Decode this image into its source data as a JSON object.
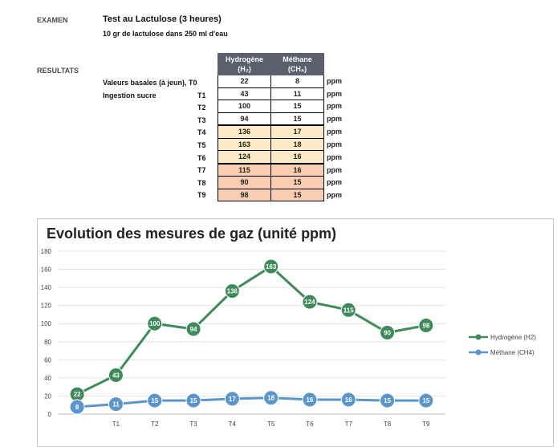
{
  "header": {
    "exam_label": "EXAMEN",
    "exam_title": "Test au Lactulose (3 heures)",
    "exam_subtitle": "10 gr de lactulose dans 250 ml d'eau",
    "results_label": "RESULTATS"
  },
  "table": {
    "col1_header_line1": "Hydrogène",
    "col1_header_line2": "(H₂)",
    "col2_header_line1": "Méthane",
    "col2_header_line2": "(CH₄)",
    "label_basal": "Valeurs basales (à jeun), T0",
    "label_ingestion": "Ingestion sucre",
    "unit": "ppm",
    "rows": [
      {
        "time": "",
        "h2": "22",
        "ch4": "8"
      },
      {
        "time": "T1",
        "h2": "43",
        "ch4": "11"
      },
      {
        "time": "T2",
        "h2": "100",
        "ch4": "15"
      },
      {
        "time": "T3",
        "h2": "94",
        "ch4": "15"
      },
      {
        "time": "T4",
        "h2": "136",
        "ch4": "17"
      },
      {
        "time": "T5",
        "h2": "163",
        "ch4": "18"
      },
      {
        "time": "T6",
        "h2": "124",
        "ch4": "16"
      },
      {
        "time": "T7",
        "h2": "115",
        "ch4": "16"
      },
      {
        "time": "T8",
        "h2": "90",
        "ch4": "15"
      },
      {
        "time": "T9",
        "h2": "98",
        "ch4": "15"
      }
    ],
    "row_colors": [
      "#ffffff",
      "#ffffff",
      "#ffffff",
      "#ffffff",
      "#fde9c4",
      "#fde9c4",
      "#fde9c4",
      "#f8cdb0",
      "#f8cdb0",
      "#f8cdb0"
    ]
  },
  "chart_data": {
    "type": "line",
    "title": "Evolution des mesures de gaz (unité ppm)",
    "categories": [
      "",
      "T1",
      "T2",
      "T3",
      "T4",
      "T5",
      "T6",
      "T7",
      "T8",
      "T9"
    ],
    "series": [
      {
        "name": "Hydrogène (H2)",
        "color": "#3e8a5a",
        "values": [
          22,
          43,
          100,
          94,
          136,
          163,
          124,
          115,
          90,
          98
        ]
      },
      {
        "name": "Méthane (CH4)",
        "color": "#5b95c9",
        "values": [
          8,
          11,
          15,
          15,
          17,
          18,
          16,
          16,
          15,
          15
        ]
      }
    ],
    "ylim": [
      0,
      180
    ],
    "yticks": [
      0,
      20,
      40,
      60,
      80,
      100,
      120,
      140,
      160,
      180
    ],
    "grid": true,
    "legend": "right"
  }
}
